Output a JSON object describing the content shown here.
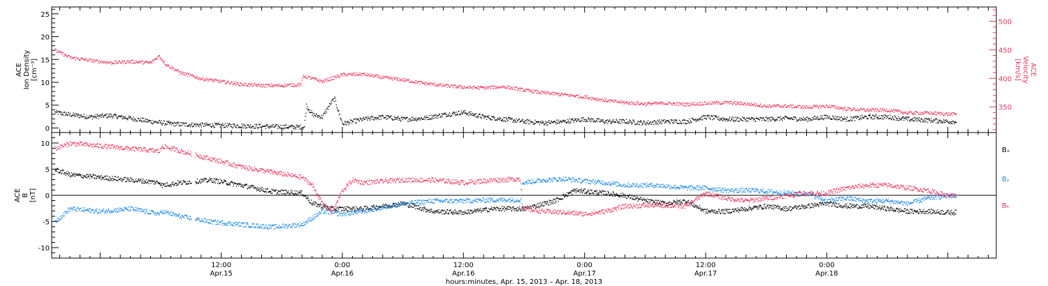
{
  "chart_data": [
    {
      "type": "scatter",
      "id": "top",
      "ylabel_left": [
        "ACE",
        "Ion Density",
        "[cm⁻³]"
      ],
      "ylabel_right": [
        "ACE",
        "Velocity",
        "[km/s]"
      ],
      "x_range_hours": [
        -4.8,
        88.8
      ],
      "ylim_left": [
        -1,
        26.5
      ],
      "ylim_right": [
        305,
        525
      ],
      "yticks_left": [
        "0",
        "5",
        "10",
        "15",
        "20",
        "25"
      ],
      "yticks_right": [
        "350",
        "400",
        "450",
        "500"
      ],
      "series": [
        {
          "axis": "left",
          "color": "#000000",
          "points_hours": [
            [
              -4.5,
              3.5
            ],
            [
              -3,
              3.0
            ],
            [
              -1,
              2.5
            ],
            [
              1,
              2.8
            ],
            [
              3,
              2.2
            ],
            [
              5,
              1.5
            ],
            [
              7,
              1.0
            ],
            [
              9,
              0.8
            ],
            [
              11,
              0.7
            ],
            [
              13,
              0.6
            ],
            [
              15,
              0.5
            ],
            [
              17,
              0.4
            ],
            [
              19,
              0.3
            ],
            [
              20.2,
              0.3
            ],
            [
              20.4,
              5.0
            ],
            [
              21,
              3.0
            ],
            [
              22,
              2.5
            ],
            [
              22.8,
              5.5
            ],
            [
              23.2,
              6.5
            ],
            [
              23.6,
              3.5
            ],
            [
              24,
              1.0
            ],
            [
              25,
              1.5
            ],
            [
              26,
              2.0
            ],
            [
              28,
              2.5
            ],
            [
              30,
              2.0
            ],
            [
              32,
              2.2
            ],
            [
              34,
              3.0
            ],
            [
              36,
              3.5
            ],
            [
              38,
              2.5
            ],
            [
              40,
              2.0
            ],
            [
              42,
              1.5
            ],
            [
              44,
              1.2
            ],
            [
              46,
              1.5
            ],
            [
              48,
              2.0
            ],
            [
              50,
              1.5
            ],
            [
              52,
              1.5
            ],
            [
              54,
              1.2
            ],
            [
              56,
              1.5
            ],
            [
              58,
              1.5
            ],
            [
              60,
              2.5
            ],
            [
              62,
              2.0
            ],
            [
              64,
              2.0
            ],
            [
              66,
              2.0
            ],
            [
              68,
              2.2
            ],
            [
              70,
              2.0
            ],
            [
              72,
              2.5
            ],
            [
              74,
              2.0
            ],
            [
              76,
              2.5
            ],
            [
              78,
              2.5
            ],
            [
              80,
              2.0
            ],
            [
              82,
              1.8
            ],
            [
              84,
              1.5
            ],
            [
              84.8,
              1.5
            ]
          ]
        },
        {
          "axis": "right",
          "color": "#e8365d",
          "points_hours": [
            [
              -4.5,
              450
            ],
            [
              -3,
              437
            ],
            [
              -1,
              432
            ],
            [
              1,
              428
            ],
            [
              3,
              430
            ],
            [
              5,
              428
            ],
            [
              5.8,
              440
            ],
            [
              6.5,
              425
            ],
            [
              8,
              410
            ],
            [
              10,
              400
            ],
            [
              12,
              395
            ],
            [
              14,
              390
            ],
            [
              16,
              388
            ],
            [
              18,
              388
            ],
            [
              19.9,
              390
            ],
            [
              20.1,
              405
            ],
            [
              22,
              395
            ],
            [
              24,
              407
            ],
            [
              26,
              408
            ],
            [
              28,
              402
            ],
            [
              30,
              398
            ],
            [
              32,
              392
            ],
            [
              34,
              388
            ],
            [
              36,
              385
            ],
            [
              38,
              384
            ],
            [
              40,
              386
            ],
            [
              42,
              380
            ],
            [
              44,
              375
            ],
            [
              46,
              372
            ],
            [
              48,
              368
            ],
            [
              50,
              362
            ],
            [
              52,
              358
            ],
            [
              54,
              356
            ],
            [
              56,
              357
            ],
            [
              58,
              355
            ],
            [
              60,
              357
            ],
            [
              62,
              358
            ],
            [
              64,
              356
            ],
            [
              66,
              352
            ],
            [
              68,
              352
            ],
            [
              70,
              350
            ],
            [
              72,
              352
            ],
            [
              74,
              347
            ],
            [
              76,
              345
            ],
            [
              78,
              345
            ],
            [
              80,
              340
            ],
            [
              82,
              340
            ],
            [
              84,
              338
            ],
            [
              84.8,
              338
            ]
          ]
        }
      ]
    },
    {
      "type": "scatter",
      "id": "bottom",
      "ylabel_left": [
        "ACE",
        "B",
        "[nT]"
      ],
      "x_range_hours": [
        -4.8,
        88.8
      ],
      "ylim": [
        -12,
        12
      ],
      "yticks": [
        "-10",
        "-5",
        "0",
        "5",
        "10"
      ],
      "legend": [
        "Bₓ",
        "Bᵧ",
        "Bₖ"
      ],
      "legend_colors": [
        "#000000",
        "#1a86e6",
        "#e8365d"
      ],
      "series": [
        {
          "name": "Bx",
          "color": "#000000",
          "points_hours": [
            [
              -4.5,
              5
            ],
            [
              -3,
              4
            ],
            [
              0,
              3.5
            ],
            [
              3,
              3
            ],
            [
              5.9,
              2.5
            ],
            [
              6.1,
              2
            ],
            [
              8,
              2.5
            ],
            [
              11,
              3.0
            ],
            [
              14,
              2.0
            ],
            [
              17,
              0.8
            ],
            [
              20,
              0.5
            ],
            [
              21,
              -1.5
            ],
            [
              23,
              -2.5
            ],
            [
              26,
              -2.5
            ],
            [
              30,
              -1.5
            ],
            [
              33,
              -3
            ],
            [
              36,
              -3.2
            ],
            [
              39,
              -2.5
            ],
            [
              42,
              -2.5
            ],
            [
              45,
              -1.0
            ],
            [
              47,
              1.0
            ],
            [
              50,
              0.5
            ],
            [
              52,
              0
            ],
            [
              54,
              -1
            ],
            [
              56,
              -1.5
            ],
            [
              58,
              -1.0
            ],
            [
              60,
              -3
            ],
            [
              62,
              -3
            ],
            [
              64,
              -2.5
            ],
            [
              66,
              -2.0
            ],
            [
              68,
              -2.5
            ],
            [
              70,
              -2
            ],
            [
              72,
              -1.5
            ],
            [
              74,
              -2
            ],
            [
              76,
              -2
            ],
            [
              78,
              -2.5
            ],
            [
              80,
              -3
            ],
            [
              82,
              -3
            ],
            [
              84,
              -3.2
            ],
            [
              84.8,
              -3.2
            ]
          ]
        },
        {
          "name": "By",
          "color": "#1a86e6",
          "points_hours": [
            [
              -4.5,
              -5
            ],
            [
              -3,
              -2.5
            ],
            [
              0,
              -3
            ],
            [
              3,
              -2.5
            ],
            [
              5.9,
              -3.5
            ],
            [
              6.1,
              -3.0
            ],
            [
              8,
              -4
            ],
            [
              11,
              -5
            ],
            [
              14,
              -5.5
            ],
            [
              17,
              -6
            ],
            [
              20,
              -5.5
            ],
            [
              22,
              -3
            ],
            [
              24,
              -3.5
            ],
            [
              26,
              -3
            ],
            [
              30,
              -1.5
            ],
            [
              33,
              -1
            ],
            [
              36,
              -1
            ],
            [
              39,
              -0.8
            ],
            [
              41.6,
              -0.8
            ],
            [
              41.8,
              2.5
            ],
            [
              44,
              3.0
            ],
            [
              46,
              3.2
            ],
            [
              48,
              2.8
            ],
            [
              50,
              2.5
            ],
            [
              52,
              2.0
            ],
            [
              55,
              2.0
            ],
            [
              58,
              1.5
            ],
            [
              60,
              1.5
            ],
            [
              62,
              1.0
            ],
            [
              65,
              1.0
            ],
            [
              68,
              0.5
            ],
            [
              70,
              0.5
            ],
            [
              72,
              -1.0
            ],
            [
              74,
              -0.5
            ],
            [
              76,
              -1.0
            ],
            [
              78,
              -1.0
            ],
            [
              80,
              -1.5
            ],
            [
              82,
              -0.5
            ],
            [
              84,
              0
            ],
            [
              84.8,
              0
            ]
          ]
        },
        {
          "name": "Bz",
          "color": "#e8365d",
          "points_hours": [
            [
              -4.5,
              9
            ],
            [
              -3,
              10
            ],
            [
              0,
              9.5
            ],
            [
              3,
              9
            ],
            [
              5.9,
              8.5
            ],
            [
              6.1,
              9.5
            ],
            [
              8,
              8.5
            ],
            [
              11,
              7.0
            ],
            [
              14,
              5.5
            ],
            [
              17,
              4.5
            ],
            [
              20,
              3.5
            ],
            [
              21,
              2.0
            ],
            [
              22,
              -1.5
            ],
            [
              23,
              -3
            ],
            [
              24,
              1
            ],
            [
              25,
              3.0
            ],
            [
              26,
              2.5
            ],
            [
              30,
              3.0
            ],
            [
              33,
              3
            ],
            [
              36,
              2.5
            ],
            [
              39,
              3.0
            ],
            [
              41.6,
              3.2
            ],
            [
              41.8,
              -2.5
            ],
            [
              44,
              -3.0
            ],
            [
              46,
              -3.2
            ],
            [
              48,
              -3.5
            ],
            [
              50,
              -3.0
            ],
            [
              52,
              -2.0
            ],
            [
              55,
              -1.8
            ],
            [
              58,
              -2.0
            ],
            [
              60,
              0.5
            ],
            [
              62,
              -0.5
            ],
            [
              64,
              -1.0
            ],
            [
              66,
              -0.5
            ],
            [
              68,
              0
            ],
            [
              70,
              0.5
            ],
            [
              72,
              0.5
            ],
            [
              74,
              1.5
            ],
            [
              76,
              2.0
            ],
            [
              78,
              2.0
            ],
            [
              80,
              1.5
            ],
            [
              82,
              1.0
            ],
            [
              84,
              0
            ],
            [
              84.8,
              0
            ]
          ]
        }
      ]
    }
  ],
  "xaxis": {
    "ticks": [
      {
        "h": 12,
        "time": "12:00",
        "date": "Apr.15"
      },
      {
        "h": 24,
        "time": "0:00",
        "date": "Apr.16"
      },
      {
        "h": 36,
        "time": "12:00",
        "date": "Apr.16"
      },
      {
        "h": 48,
        "time": "0:00",
        "date": "Apr.17"
      },
      {
        "h": 60,
        "time": "12:00",
        "date": "Apr.17"
      },
      {
        "h": 72,
        "time": "0:00",
        "date": "Apr.18"
      }
    ],
    "label": "hours:minutes, Apr. 15, 2013 – Apr. 18, 2013"
  }
}
